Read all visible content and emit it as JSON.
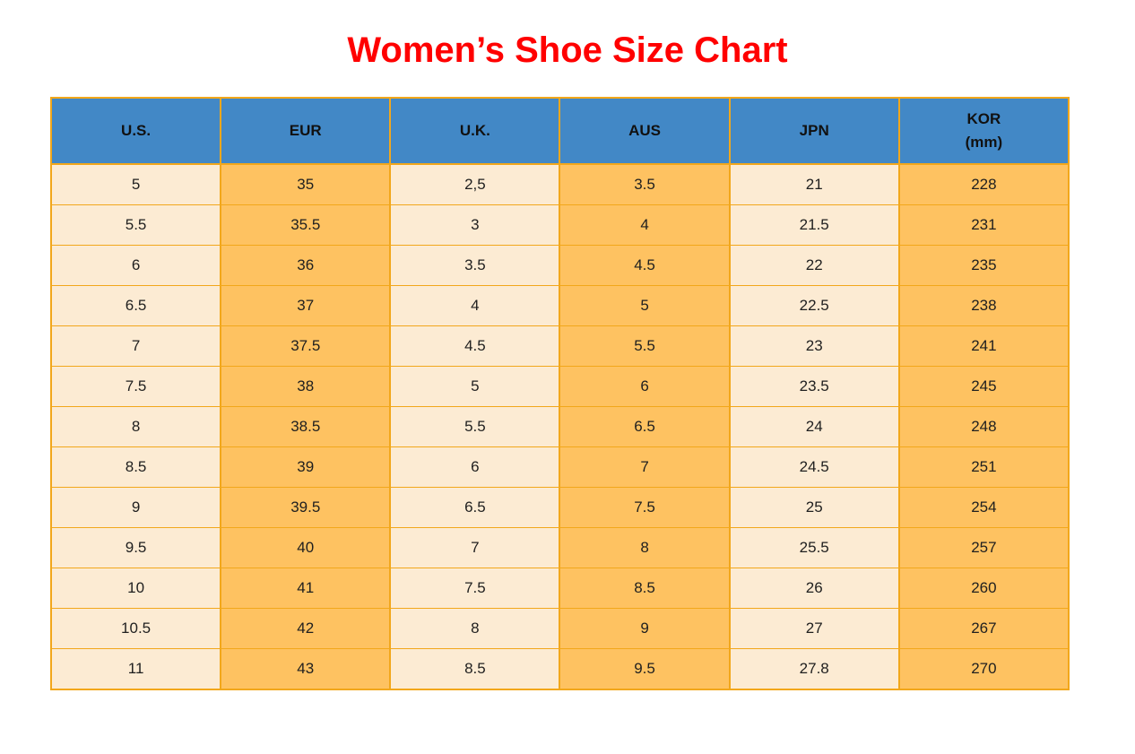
{
  "title": {
    "text": "Women’s Shoe Size Chart",
    "color": "#FF0000"
  },
  "table": {
    "headers": [
      {
        "key": "us",
        "lines": [
          "U.S."
        ]
      },
      {
        "key": "eur",
        "lines": [
          "EUR"
        ]
      },
      {
        "key": "uk",
        "lines": [
          "U.K."
        ]
      },
      {
        "key": "aus",
        "lines": [
          "AUS"
        ]
      },
      {
        "key": "jpn",
        "lines": [
          "JPN"
        ]
      },
      {
        "key": "kor",
        "lines": [
          "KOR",
          "(mm)"
        ]
      }
    ],
    "column_shading": [
      "cream",
      "orange",
      "cream",
      "orange",
      "cream",
      "orange"
    ],
    "rows": [
      [
        "5",
        "35",
        "2,5",
        "3.5",
        "21",
        "228"
      ],
      [
        "5.5",
        "35.5",
        "3",
        "4",
        "21.5",
        "231"
      ],
      [
        "6",
        "36",
        "3.5",
        "4.5",
        "22",
        "235"
      ],
      [
        "6.5",
        "37",
        "4",
        "5",
        "22.5",
        "238"
      ],
      [
        "7",
        "37.5",
        "4.5",
        "5.5",
        "23",
        "241"
      ],
      [
        "7.5",
        "38",
        "5",
        "6",
        "23.5",
        "245"
      ],
      [
        "8",
        "38.5",
        "5.5",
        "6.5",
        "24",
        "248"
      ],
      [
        "8.5",
        "39",
        "6",
        "7",
        "24.5",
        "251"
      ],
      [
        "9",
        "39.5",
        "6.5",
        "7.5",
        "25",
        "254"
      ],
      [
        "9.5",
        "40",
        "7",
        "8",
        "25.5",
        "257"
      ],
      [
        "10",
        "41",
        "7.5",
        "8.5",
        "26",
        "260"
      ],
      [
        "10.5",
        "42",
        "8",
        "9",
        "27",
        "267"
      ],
      [
        "11",
        "43",
        "8.5",
        "9.5",
        "27.8",
        "270"
      ]
    ],
    "colors": {
      "header_bg": "#4288C6",
      "cream_bg": "#FCEBD3",
      "orange_bg": "#FEC261",
      "border": "#F2A71B",
      "text": "#1F1F1F"
    }
  },
  "chart_data": {
    "type": "table",
    "title": "Women’s Shoe Size Chart",
    "columns": [
      "U.S.",
      "EUR",
      "U.K.",
      "AUS",
      "JPN",
      "KOR (mm)"
    ],
    "rows": [
      [
        "5",
        "35",
        "2,5",
        "3.5",
        "21",
        "228"
      ],
      [
        "5.5",
        "35.5",
        "3",
        "4",
        "21.5",
        "231"
      ],
      [
        "6",
        "36",
        "3.5",
        "4.5",
        "22",
        "235"
      ],
      [
        "6.5",
        "37",
        "4",
        "5",
        "22.5",
        "238"
      ],
      [
        "7",
        "37.5",
        "4.5",
        "5.5",
        "23",
        "241"
      ],
      [
        "7.5",
        "38",
        "5",
        "6",
        "23.5",
        "245"
      ],
      [
        "8",
        "38.5",
        "5.5",
        "6.5",
        "24",
        "248"
      ],
      [
        "8.5",
        "39",
        "6",
        "7",
        "24.5",
        "251"
      ],
      [
        "9",
        "39.5",
        "6.5",
        "7.5",
        "25",
        "254"
      ],
      [
        "9.5",
        "40",
        "7",
        "8",
        "25.5",
        "257"
      ],
      [
        "10",
        "41",
        "7.5",
        "8.5",
        "26",
        "260"
      ],
      [
        "10.5",
        "42",
        "8",
        "9",
        "27",
        "267"
      ],
      [
        "11",
        "43",
        "8.5",
        "9.5",
        "27.8",
        "270"
      ]
    ]
  }
}
